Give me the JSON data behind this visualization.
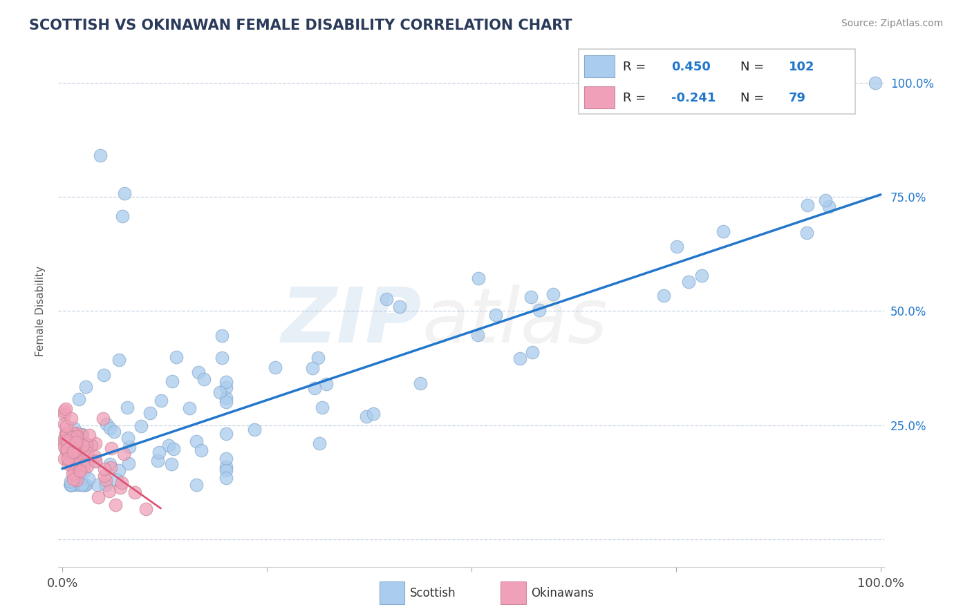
{
  "title": "SCOTTISH VS OKINAWAN FEMALE DISABILITY CORRELATION CHART",
  "source": "Source: ZipAtlas.com",
  "ylabel": "Female Disability",
  "R_scottish": 0.45,
  "N_scottish": 102,
  "R_okinawan": -0.241,
  "N_okinawan": 79,
  "scatter_blue_color": "#aaccee",
  "scatter_blue_edge": "#88aacc",
  "scatter_pink_color": "#f0a0b8",
  "scatter_pink_edge": "#cc8899",
  "line_blue_color": "#2277cc",
  "line_pink_color": "#dd5577",
  "legend_R_color": "#2277cc",
  "legend_N_color": "#2277cc",
  "background_color": "#ffffff",
  "grid_color": "#c8d4e4",
  "title_color": "#2a3a5a",
  "watermark_zip_color": "#99bbdd",
  "watermark_atlas_color": "#bbbbbb"
}
